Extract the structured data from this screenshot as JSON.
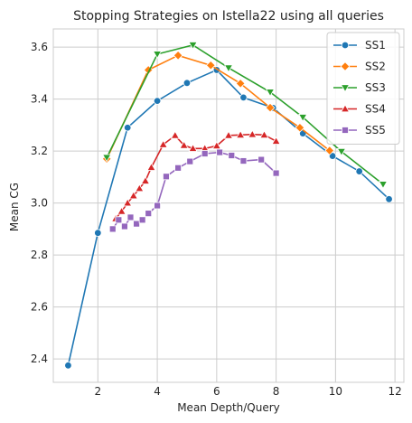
{
  "chart_data": {
    "type": "line",
    "title": "Stopping Strategies on Istella22 using all queries",
    "xlabel": "Mean Depth/Query",
    "ylabel": "Mean CG",
    "xlim": [
      0.5,
      12.3
    ],
    "ylim": [
      2.31,
      3.67
    ],
    "xticks": [
      2,
      4,
      6,
      8,
      10,
      12
    ],
    "yticks": [
      2.4,
      2.6,
      2.8,
      3.0,
      3.2,
      3.4,
      3.6
    ],
    "grid": true,
    "legend_position": "top-right",
    "series": [
      {
        "name": "SS1",
        "color": "#1f77b4",
        "marker": "circle",
        "x": [
          1.0,
          2.0,
          3.0,
          4.0,
          5.0,
          6.0,
          6.9,
          7.9,
          8.9,
          9.9,
          10.8,
          11.8
        ],
        "y": [
          2.375,
          2.885,
          3.29,
          3.393,
          3.462,
          3.512,
          3.406,
          3.366,
          3.268,
          3.181,
          3.122,
          3.015
        ]
      },
      {
        "name": "SS2",
        "color": "#ff7f0e",
        "marker": "diamond",
        "x": [
          2.3,
          3.7,
          4.7,
          5.8,
          6.8,
          7.8,
          8.8,
          9.8
        ],
        "y": [
          3.17,
          3.512,
          3.568,
          3.53,
          3.46,
          3.367,
          3.29,
          3.202
        ]
      },
      {
        "name": "SS3",
        "color": "#2ca02c",
        "marker": "triangle-down",
        "x": [
          2.3,
          4.0,
          5.2,
          6.4,
          7.8,
          8.9,
          10.2,
          11.6
        ],
        "y": [
          3.175,
          3.573,
          3.608,
          3.52,
          3.427,
          3.33,
          3.198,
          3.072
        ]
      },
      {
        "name": "SS4",
        "color": "#d62728",
        "marker": "triangle-up",
        "x": [
          2.6,
          2.8,
          3.0,
          3.2,
          3.4,
          3.6,
          3.8,
          4.2,
          4.6,
          4.9,
          5.2,
          5.6,
          6.0,
          6.4,
          6.8,
          7.2,
          7.6,
          8.0
        ],
        "y": [
          2.94,
          2.968,
          3.0,
          3.028,
          3.056,
          3.085,
          3.137,
          3.225,
          3.26,
          3.222,
          3.21,
          3.21,
          3.22,
          3.26,
          3.262,
          3.264,
          3.262,
          3.238
        ]
      },
      {
        "name": "SS5",
        "color": "#9467bd",
        "marker": "square",
        "x": [
          2.5,
          2.7,
          2.9,
          3.1,
          3.3,
          3.5,
          3.7,
          4.0,
          4.3,
          4.7,
          5.1,
          5.6,
          6.1,
          6.5,
          6.9,
          7.5,
          8.0
        ],
        "y": [
          2.9,
          2.935,
          2.91,
          2.945,
          2.92,
          2.935,
          2.96,
          2.99,
          3.102,
          3.135,
          3.16,
          3.19,
          3.195,
          3.183,
          3.162,
          3.167,
          3.115
        ]
      }
    ]
  }
}
